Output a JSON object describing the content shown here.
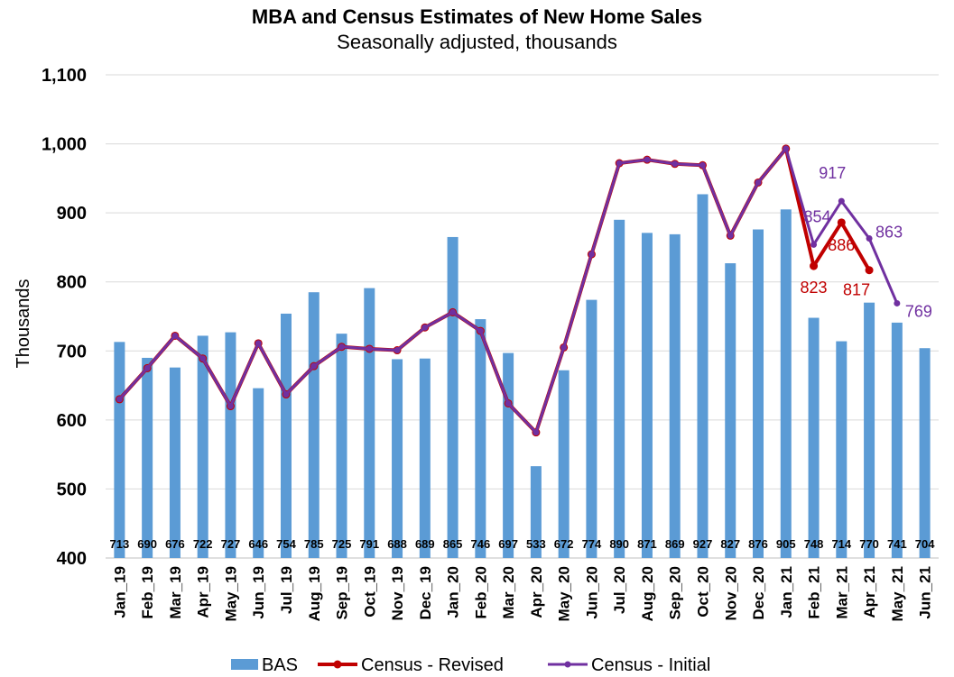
{
  "colors": {
    "bars": "#5B9BD5",
    "revised": "#C00000",
    "initial": "#7030A0",
    "grid": "#D9D9D9"
  },
  "chart_data": {
    "type": "bar",
    "title": "MBA and Census Estimates of New Home Sales",
    "subtitle": "Seasonally adjusted, thousands",
    "ylabel": "Thousands",
    "xlabel": "",
    "ylim": [
      400,
      1100
    ],
    "yticks": [
      400,
      500,
      600,
      700,
      800,
      900,
      1000,
      1100
    ],
    "ytick_labels": [
      "400",
      "500",
      "600",
      "700",
      "800",
      "900",
      "1,000",
      "1,100"
    ],
    "grid": true,
    "legend_position": "bottom",
    "categories": [
      "Jan_19",
      "Feb_19",
      "Mar_19",
      "Apr_19",
      "May_19",
      "Jun_19",
      "Jul_19",
      "Aug_19",
      "Sep_19",
      "Oct_19",
      "Nov_19",
      "Dec_19",
      "Jan_20",
      "Feb_20",
      "Mar_20",
      "Apr_20",
      "May_20",
      "Jun_20",
      "Jul_20",
      "Aug_20",
      "Sep_20",
      "Oct_20",
      "Nov_20",
      "Dec_20",
      "Jan_21",
      "Feb_21",
      "Mar_21",
      "Apr_21",
      "May_21",
      "Jun_21"
    ],
    "series": [
      {
        "name": "BAS",
        "kind": "bar",
        "values": [
          713,
          690,
          676,
          722,
          727,
          646,
          754,
          785,
          725,
          791,
          688,
          689,
          865,
          746,
          697,
          533,
          672,
          774,
          890,
          871,
          869,
          927,
          827,
          876,
          905,
          748,
          714,
          770,
          741,
          704
        ]
      },
      {
        "name": "Census - Revised",
        "kind": "line",
        "values": [
          630,
          675,
          722,
          689,
          620,
          711,
          637,
          678,
          706,
          703,
          701,
          734,
          756,
          729,
          624,
          582,
          705,
          840,
          972,
          977,
          971,
          969,
          867,
          944,
          993,
          823,
          886,
          817,
          null,
          null
        ]
      },
      {
        "name": "Census - Initial",
        "kind": "line",
        "values": [
          630,
          675,
          722,
          689,
          620,
          711,
          637,
          678,
          706,
          703,
          701,
          734,
          756,
          729,
          624,
          582,
          705,
          840,
          972,
          977,
          971,
          969,
          867,
          944,
          993,
          854,
          917,
          863,
          769,
          null
        ]
      }
    ],
    "point_labels": [
      {
        "series": "Census - Revised",
        "index": 25,
        "text": "823"
      },
      {
        "series": "Census - Revised",
        "index": 26,
        "text": "886"
      },
      {
        "series": "Census - Revised",
        "index": 27,
        "text": "817"
      },
      {
        "series": "Census - Initial",
        "index": 25,
        "text": "854"
      },
      {
        "series": "Census - Initial",
        "index": 26,
        "text": "917"
      },
      {
        "series": "Census - Initial",
        "index": 27,
        "text": "863"
      },
      {
        "series": "Census - Initial",
        "index": 28,
        "text": "769"
      }
    ]
  }
}
